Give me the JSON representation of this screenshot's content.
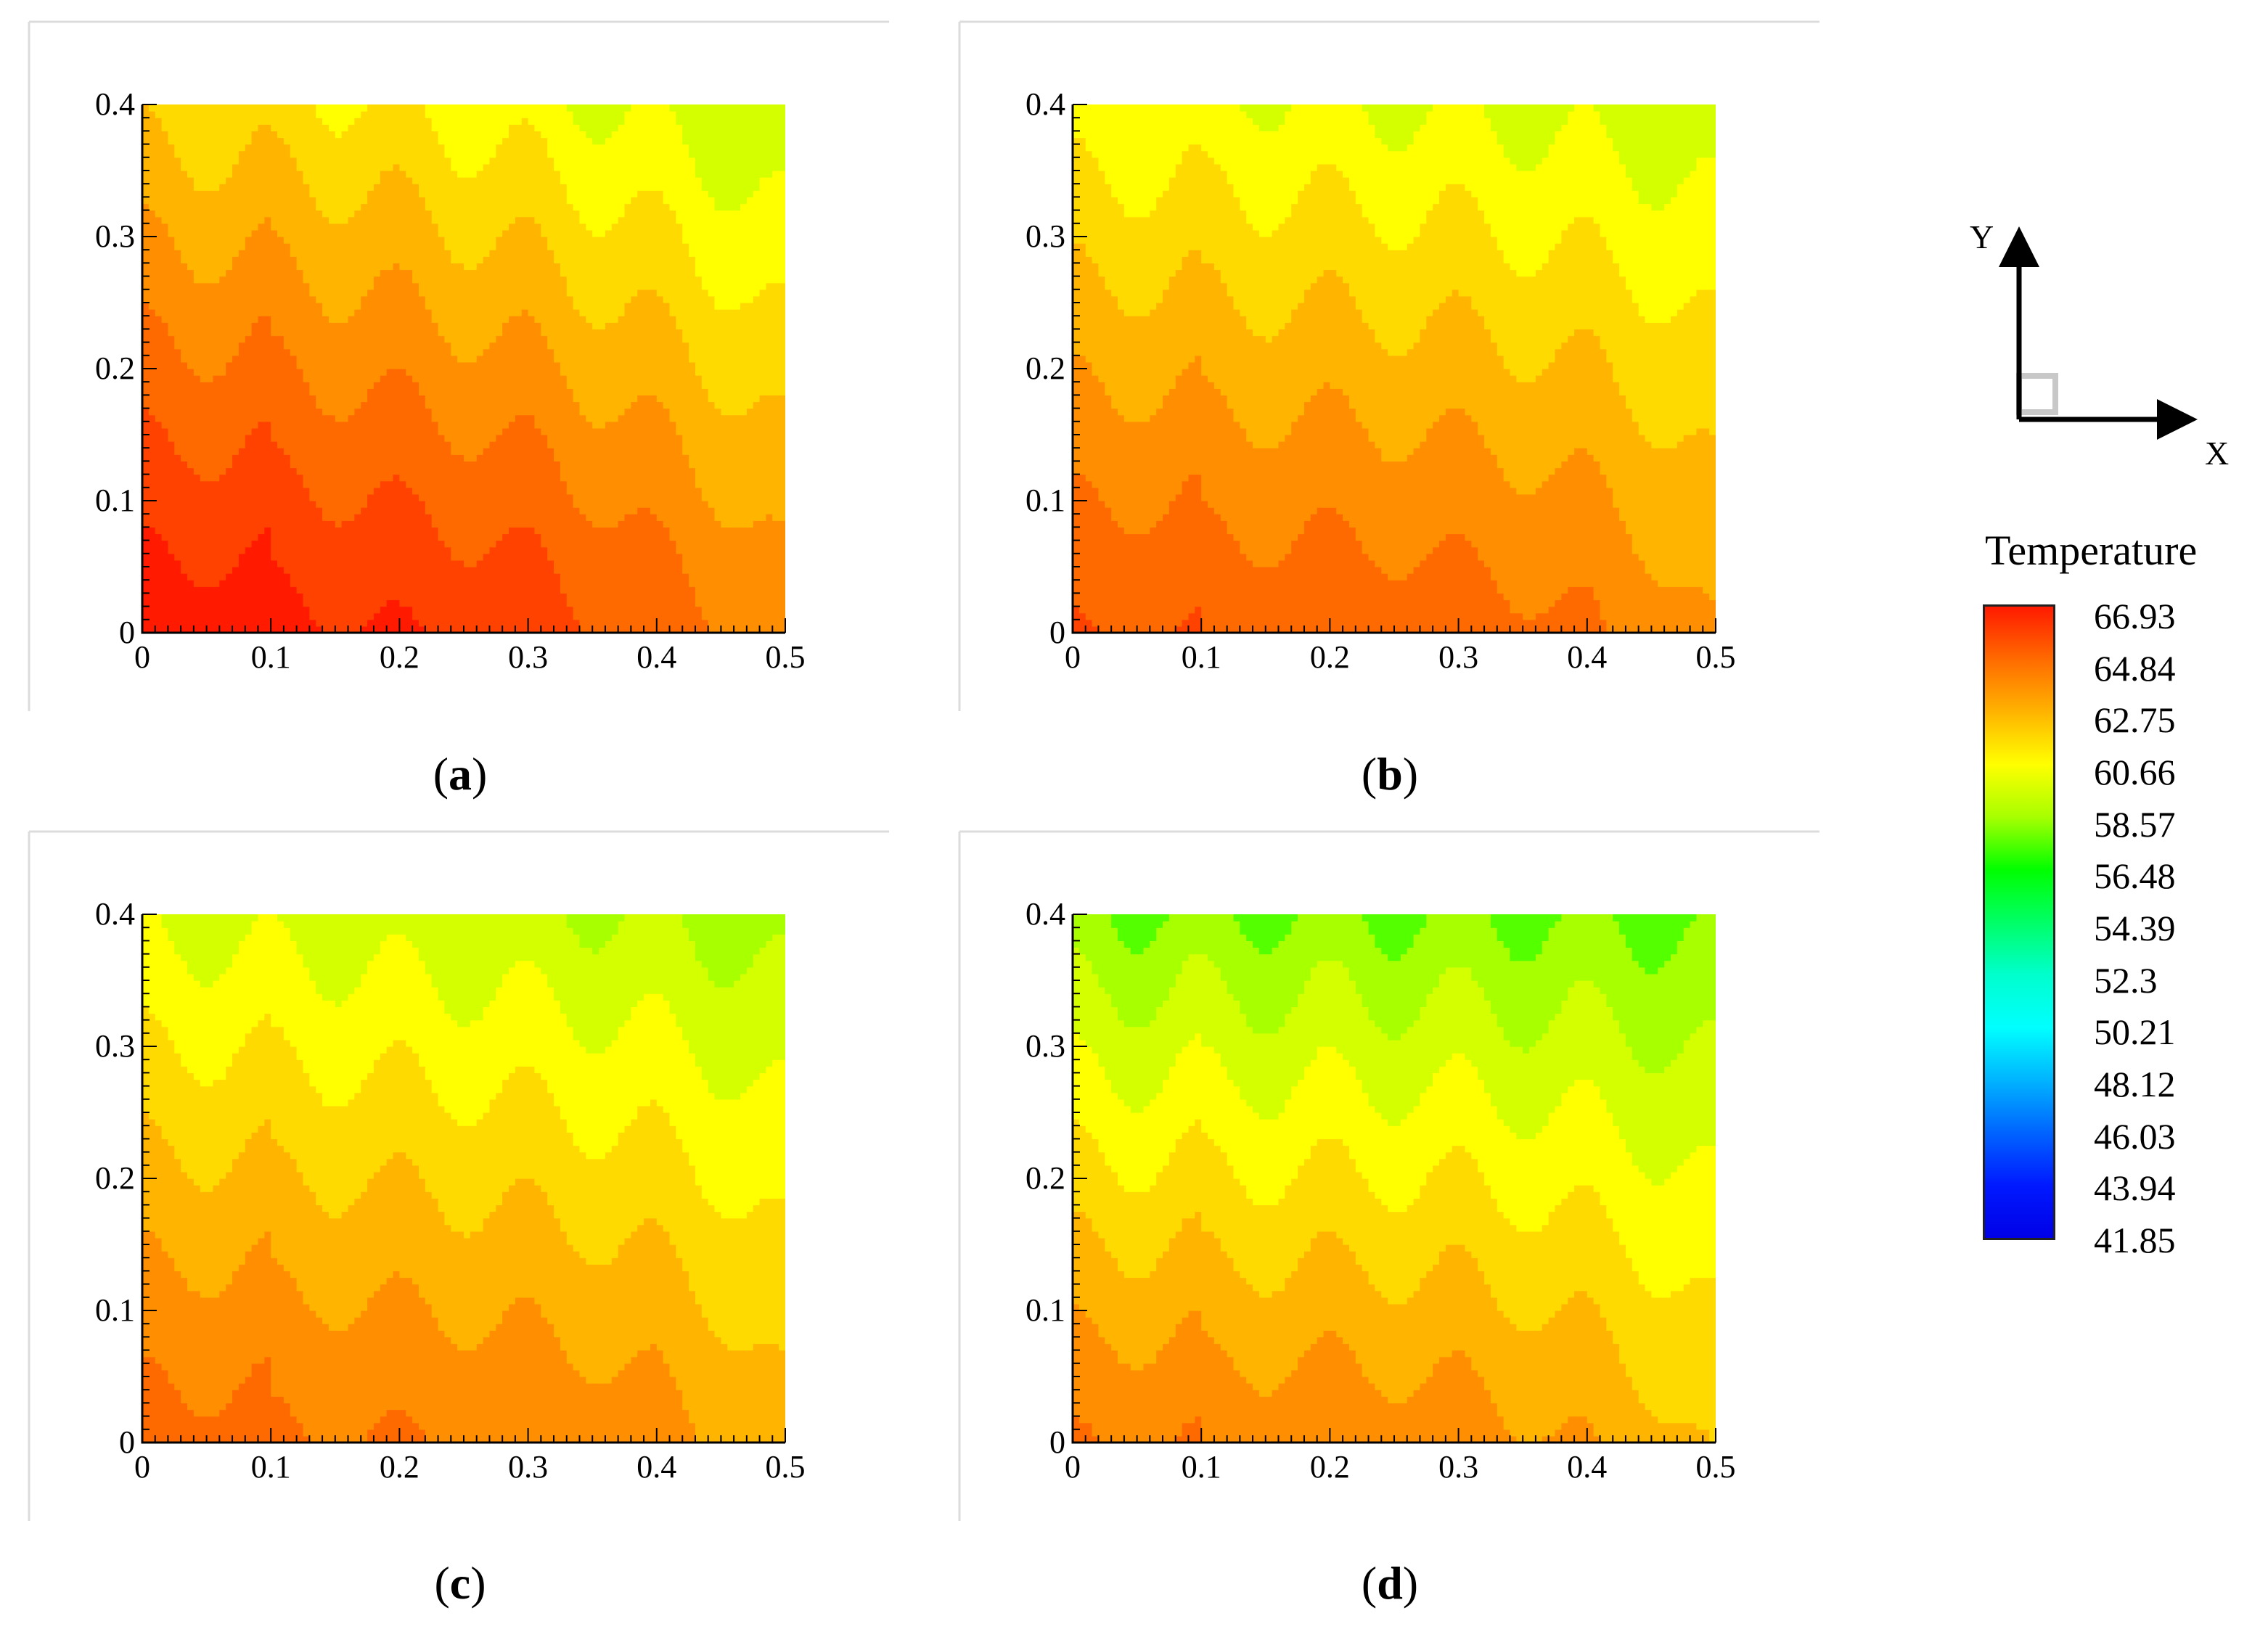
{
  "chart_data": [
    {
      "type": "heatmap",
      "panel_label": "a",
      "xlim": [
        0,
        0.5
      ],
      "ylim": [
        0,
        0.4
      ],
      "x_ticks": [
        "0",
        "0.1",
        "0.2",
        "0.3",
        "0.4",
        "0.5"
      ],
      "y_ticks": [
        "0",
        "0.1",
        "0.2",
        "0.3",
        "0.4"
      ],
      "crests_x": [
        0.1,
        0.2,
        0.3,
        0.4
      ],
      "troughs_x": [
        0.05,
        0.15,
        0.25,
        0.35,
        0.45
      ],
      "bottom_temperature_at_crests": [
        66.9,
        66.6,
        66.2,
        65.2
      ],
      "top_temperature_left": 61.5,
      "top_temperature_right": 58.8
    },
    {
      "type": "heatmap",
      "panel_label": "b",
      "xlim": [
        0,
        0.5
      ],
      "ylim": [
        0,
        0.4
      ],
      "x_ticks": [
        "0",
        "0.1",
        "0.2",
        "0.3",
        "0.4",
        "0.5"
      ],
      "y_ticks": [
        "0",
        "0.1",
        "0.2",
        "0.3",
        "0.4"
      ],
      "crests_x": [
        0.1,
        0.2,
        0.3,
        0.4
      ],
      "troughs_x": [
        0.05,
        0.15,
        0.25,
        0.35,
        0.45
      ],
      "bottom_temperature_at_crests": [
        65.2,
        65.2,
        65.0,
        64.6
      ],
      "top_temperature_left": 60.2,
      "top_temperature_right": 59.2
    },
    {
      "type": "heatmap",
      "panel_label": "c",
      "xlim": [
        0,
        0.5
      ],
      "ylim": [
        0,
        0.4
      ],
      "x_ticks": [
        "0",
        "0.1",
        "0.2",
        "0.3",
        "0.4",
        "0.5"
      ],
      "y_ticks": [
        "0",
        "0.1",
        "0.2",
        "0.3",
        "0.4"
      ],
      "crests_x": [
        0.1,
        0.2,
        0.3,
        0.4
      ],
      "troughs_x": [
        0.05,
        0.15,
        0.25,
        0.35,
        0.45
      ],
      "bottom_temperature_at_crests": [
        64.6,
        64.5,
        64.3,
        63.9
      ],
      "top_temperature_left": 59.6,
      "top_temperature_right": 58.4
    },
    {
      "type": "heatmap",
      "panel_label": "d",
      "xlim": [
        0,
        0.5
      ],
      "ylim": [
        0,
        0.4
      ],
      "x_ticks": [
        "0",
        "0.1",
        "0.2",
        "0.3",
        "0.4",
        "0.5"
      ],
      "y_ticks": [
        "0",
        "0.1",
        "0.2",
        "0.3",
        "0.4"
      ],
      "crests_x": [
        0.1,
        0.2,
        0.3,
        0.4
      ],
      "troughs_x": [
        0.05,
        0.15,
        0.25,
        0.35,
        0.45
      ],
      "bottom_temperature_at_crests": [
        64.2,
        64.2,
        64.0,
        63.4
      ],
      "top_temperature_left": 57.8,
      "top_temperature_right": 57.6
    }
  ],
  "legend": {
    "title": "Temperature",
    "levels": [
      "66.93",
      "64.84",
      "62.75",
      "60.66",
      "58.57",
      "56.48",
      "54.39",
      "52.3",
      "50.21",
      "48.12",
      "46.03",
      "43.94",
      "41.85"
    ],
    "colors": [
      "#ff1a00",
      "#ff6a00",
      "#ffb400",
      "#ffff00",
      "#a8ff00",
      "#00ff00",
      "#00ff66",
      "#00ffcc",
      "#00ffff",
      "#00b4ff",
      "#0064ff",
      "#0019ff",
      "#0000e6"
    ]
  },
  "axes_widget": {
    "x_label": "X",
    "y_label": "Y"
  }
}
